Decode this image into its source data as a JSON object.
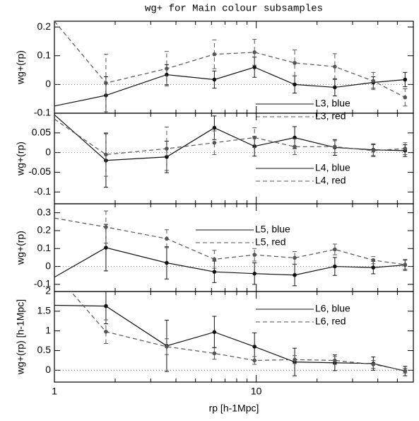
{
  "title": "wg+ for Main colour subsamples",
  "chart_data": [
    {
      "type": "line",
      "ylabel": "wg+(rp)",
      "xlim": [
        1,
        60
      ],
      "ylim": [
        -0.1,
        0.22
      ],
      "yticks": [
        -0.1,
        0,
        0.1,
        0.2
      ],
      "xticks": [
        1,
        10
      ],
      "log_x": true,
      "hline": 0,
      "series": [
        {
          "name": "L3, blue",
          "color": "#111111",
          "linestyle": "solid",
          "x": [
            1,
            1.8,
            3.6,
            6.2,
            9.8,
            15.5,
            24.5,
            38,
            54.6
          ],
          "values": [
            -0.075,
            -0.038,
            0.034,
            0.017,
            0.06,
            0.0,
            -0.01,
            0.007,
            0.017
          ],
          "errors": [
            null,
            0.065,
            0.035,
            0.03,
            0.035,
            0.03,
            0.03,
            0.02,
            0.025
          ]
        },
        {
          "name": "L3, red",
          "color": "#555555",
          "linestyle": "dashed",
          "x": [
            1,
            1.8,
            3.6,
            6.2,
            9.8,
            15.5,
            24.5,
            38,
            54.6
          ],
          "values": [
            0.22,
            0.005,
            0.055,
            0.105,
            0.112,
            0.075,
            0.062,
            0.012,
            -0.045
          ],
          "errors": [
            null,
            0.1,
            0.06,
            0.05,
            0.045,
            0.045,
            0.045,
            0.03,
            0.03
          ]
        }
      ]
    },
    {
      "type": "line",
      "ylabel": "wg+(rp)",
      "xlim": [
        1,
        60
      ],
      "ylim": [
        -0.13,
        0.1
      ],
      "yticks": [
        -0.1,
        -0.05,
        0,
        0.05
      ],
      "xticks": [
        1,
        10
      ],
      "log_x": true,
      "hline": 0,
      "series": [
        {
          "name": "L4, blue",
          "color": "#111111",
          "linestyle": "solid",
          "x": [
            1,
            1.8,
            3.6,
            6.2,
            9.8,
            15.5,
            24.5,
            38,
            54.6
          ],
          "values": [
            0.096,
            -0.02,
            -0.011,
            0.063,
            0.016,
            0.038,
            0.013,
            0.007,
            0.005
          ],
          "errors": [
            null,
            0.068,
            0.04,
            0.03,
            0.025,
            0.028,
            0.02,
            0.015,
            0.015
          ]
        },
        {
          "name": "L4, red",
          "color": "#555555",
          "linestyle": "dashed",
          "x": [
            1,
            1.8,
            3.6,
            6.2,
            9.8,
            15.5,
            24.5,
            38,
            54.6
          ],
          "values": [
            0.085,
            -0.005,
            0.01,
            0.025,
            0.038,
            0.015,
            0.015,
            0.005,
            0.01
          ],
          "errors": [
            null,
            0.055,
            0.055,
            0.03,
            0.025,
            0.02,
            0.015,
            0.015,
            0.015
          ]
        }
      ]
    },
    {
      "type": "line",
      "ylabel": "wg+(rp)",
      "xlim": [
        1,
        60
      ],
      "ylim": [
        -0.14,
        0.35
      ],
      "yticks": [
        -0.1,
        0,
        0.1,
        0.2,
        0.3
      ],
      "xticks": [
        1,
        10
      ],
      "log_x": true,
      "hline": 0,
      "series": [
        {
          "name": "L5, blue",
          "color": "#111111",
          "linestyle": "solid",
          "x": [
            1,
            1.8,
            3.6,
            6.2,
            9.8,
            15.5,
            24.5,
            38,
            54.6
          ],
          "values": [
            -0.06,
            0.105,
            0.02,
            -0.03,
            -0.04,
            -0.048,
            0.0,
            -0.006,
            0.008
          ],
          "errors": [
            null,
            0.13,
            0.09,
            0.06,
            0.06,
            0.06,
            0.05,
            0.035,
            0.03
          ]
        },
        {
          "name": "L5, red",
          "color": "#555555",
          "linestyle": "dashed",
          "x": [
            1,
            1.8,
            3.6,
            6.2,
            9.8,
            15.5,
            24.5,
            38,
            54.6
          ],
          "values": [
            0.27,
            0.22,
            0.155,
            0.04,
            0.065,
            0.048,
            0.095,
            0.035,
            0.01
          ],
          "errors": [
            null,
            0.09,
            0.05,
            0.05,
            0.035,
            0.035,
            0.03,
            0.02,
            0.025
          ]
        }
      ]
    },
    {
      "type": "line",
      "ylabel": "wg+(rp) [h-1Mpc]",
      "xlabel": "rp [h-1Mpc]",
      "xlim": [
        1,
        60
      ],
      "ylim": [
        -0.3,
        2
      ],
      "yticks": [
        0,
        0.5,
        1,
        1.5,
        2
      ],
      "xticks": [
        1,
        10
      ],
      "log_x": true,
      "hline": 0,
      "series": [
        {
          "name": "L6, blue",
          "color": "#111111",
          "linestyle": "solid",
          "x": [
            1,
            1.8,
            3.6,
            6.2,
            9.8,
            15.5,
            24.5,
            38,
            54.6
          ],
          "values": [
            1.65,
            1.63,
            0.62,
            0.97,
            0.6,
            0.21,
            0.19,
            0.17,
            -0.02
          ],
          "errors": [
            null,
            0.45,
            0.65,
            0.4,
            0.35,
            0.35,
            0.2,
            0.17,
            0.12
          ]
        },
        {
          "name": "L6, red",
          "color": "#555555",
          "linestyle": "dashed",
          "x": [
            1,
            1.8,
            3.6,
            6.2,
            9.8,
            15.5,
            24.5,
            38,
            54.6
          ],
          "values": [
            2.48,
            0.98,
            0.6,
            0.43,
            0.25,
            0.27,
            0.25,
            0.15,
            -0.01
          ],
          "errors": [
            null,
            0.3,
            0.2,
            0.15,
            0.1,
            0.1,
            0.1,
            0.1,
            0.06
          ]
        }
      ]
    }
  ]
}
